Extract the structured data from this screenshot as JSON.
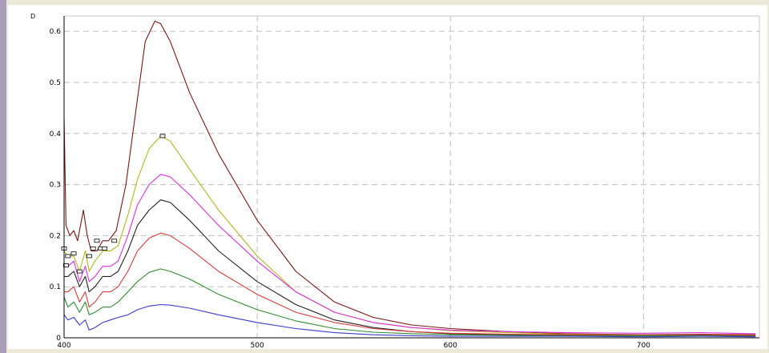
{
  "chart_data": {
    "type": "line",
    "ylabel": "D",
    "xlabel": "",
    "xlim": [
      400,
      760
    ],
    "ylim": [
      0,
      0.63
    ],
    "grid": true,
    "x_ticks": [
      400,
      500,
      600,
      700
    ],
    "x_tick_labels": [
      "400",
      "500",
      "600",
      "700"
    ],
    "y_ticks": [
      0,
      0.1,
      0.2,
      0.3,
      0.4,
      0.5,
      0.6
    ],
    "y_tick_labels": [
      "0",
      "0.1",
      "0.2",
      "0.3",
      "0.4",
      "0.5",
      "0.6"
    ],
    "series": [
      {
        "color": "#7a1616",
        "points": [
          [
            400,
            0.43
          ],
          [
            401,
            0.22
          ],
          [
            403,
            0.2
          ],
          [
            405,
            0.21
          ],
          [
            407,
            0.19
          ],
          [
            410,
            0.25
          ],
          [
            412,
            0.2
          ],
          [
            414,
            0.17
          ],
          [
            417,
            0.17
          ],
          [
            420,
            0.19
          ],
          [
            423,
            0.19
          ],
          [
            427,
            0.21
          ],
          [
            432,
            0.3
          ],
          [
            437,
            0.44
          ],
          [
            442,
            0.58
          ],
          [
            447,
            0.62
          ],
          [
            450,
            0.615
          ],
          [
            455,
            0.58
          ],
          [
            465,
            0.48
          ],
          [
            480,
            0.36
          ],
          [
            500,
            0.23
          ],
          [
            520,
            0.13
          ],
          [
            540,
            0.07
          ],
          [
            560,
            0.04
          ],
          [
            580,
            0.025
          ],
          [
            600,
            0.018
          ],
          [
            630,
            0.012
          ],
          [
            660,
            0.008
          ],
          [
            700,
            0.006
          ],
          [
            730,
            0.007
          ],
          [
            758,
            0.006
          ]
        ]
      },
      {
        "color": "#b5b51e",
        "points": [
          [
            400,
            0.17
          ],
          [
            402,
            0.16
          ],
          [
            405,
            0.16
          ],
          [
            408,
            0.13
          ],
          [
            411,
            0.17
          ],
          [
            413,
            0.13
          ],
          [
            416,
            0.15
          ],
          [
            420,
            0.17
          ],
          [
            424,
            0.17
          ],
          [
            428,
            0.18
          ],
          [
            433,
            0.24
          ],
          [
            438,
            0.31
          ],
          [
            444,
            0.37
          ],
          [
            450,
            0.395
          ],
          [
            455,
            0.385
          ],
          [
            465,
            0.33
          ],
          [
            480,
            0.25
          ],
          [
            500,
            0.16
          ],
          [
            520,
            0.09
          ],
          [
            540,
            0.05
          ],
          [
            560,
            0.03
          ],
          [
            580,
            0.02
          ],
          [
            600,
            0.014
          ],
          [
            630,
            0.01
          ],
          [
            660,
            0.007
          ],
          [
            700,
            0.005
          ],
          [
            730,
            0.006
          ],
          [
            758,
            0.005
          ]
        ]
      },
      {
        "color": "#d930d9",
        "points": [
          [
            400,
            0.14
          ],
          [
            402,
            0.14
          ],
          [
            405,
            0.15
          ],
          [
            408,
            0.11
          ],
          [
            411,
            0.14
          ],
          [
            413,
            0.11
          ],
          [
            416,
            0.12
          ],
          [
            420,
            0.14
          ],
          [
            424,
            0.14
          ],
          [
            428,
            0.15
          ],
          [
            433,
            0.2
          ],
          [
            438,
            0.26
          ],
          [
            444,
            0.3
          ],
          [
            450,
            0.32
          ],
          [
            455,
            0.315
          ],
          [
            465,
            0.28
          ],
          [
            480,
            0.22
          ],
          [
            500,
            0.15
          ],
          [
            520,
            0.09
          ],
          [
            540,
            0.05
          ],
          [
            560,
            0.03
          ],
          [
            580,
            0.02
          ],
          [
            600,
            0.015
          ],
          [
            630,
            0.012
          ],
          [
            660,
            0.01
          ],
          [
            700,
            0.009
          ],
          [
            730,
            0.01
          ],
          [
            758,
            0.008
          ]
        ]
      },
      {
        "color": "#222222",
        "points": [
          [
            400,
            0.12
          ],
          [
            402,
            0.12
          ],
          [
            405,
            0.13
          ],
          [
            408,
            0.1
          ],
          [
            411,
            0.12
          ],
          [
            413,
            0.09
          ],
          [
            416,
            0.1
          ],
          [
            420,
            0.12
          ],
          [
            424,
            0.12
          ],
          [
            428,
            0.13
          ],
          [
            433,
            0.17
          ],
          [
            438,
            0.22
          ],
          [
            444,
            0.25
          ],
          [
            450,
            0.27
          ],
          [
            455,
            0.265
          ],
          [
            465,
            0.23
          ],
          [
            480,
            0.17
          ],
          [
            500,
            0.11
          ],
          [
            520,
            0.065
          ],
          [
            540,
            0.035
          ],
          [
            560,
            0.02
          ],
          [
            580,
            0.012
          ],
          [
            600,
            0.008
          ],
          [
            630,
            0.006
          ],
          [
            660,
            0.005
          ],
          [
            700,
            0.004
          ],
          [
            730,
            0.005
          ],
          [
            758,
            0.004
          ]
        ]
      },
      {
        "color": "#d83a3a",
        "points": [
          [
            400,
            0.09
          ],
          [
            402,
            0.09
          ],
          [
            405,
            0.1
          ],
          [
            408,
            0.07
          ],
          [
            411,
            0.09
          ],
          [
            413,
            0.06
          ],
          [
            416,
            0.07
          ],
          [
            420,
            0.09
          ],
          [
            424,
            0.09
          ],
          [
            428,
            0.1
          ],
          [
            433,
            0.13
          ],
          [
            438,
            0.17
          ],
          [
            444,
            0.195
          ],
          [
            450,
            0.205
          ],
          [
            455,
            0.2
          ],
          [
            465,
            0.175
          ],
          [
            480,
            0.13
          ],
          [
            500,
            0.085
          ],
          [
            520,
            0.05
          ],
          [
            540,
            0.03
          ],
          [
            560,
            0.018
          ],
          [
            580,
            0.012
          ],
          [
            600,
            0.009
          ],
          [
            630,
            0.007
          ],
          [
            660,
            0.006
          ],
          [
            700,
            0.005
          ],
          [
            730,
            0.006
          ],
          [
            758,
            0.005
          ]
        ]
      },
      {
        "color": "#2e8b2e",
        "points": [
          [
            400,
            0.08
          ],
          [
            402,
            0.06
          ],
          [
            405,
            0.07
          ],
          [
            408,
            0.05
          ],
          [
            411,
            0.07
          ],
          [
            413,
            0.045
          ],
          [
            416,
            0.05
          ],
          [
            420,
            0.06
          ],
          [
            424,
            0.06
          ],
          [
            428,
            0.07
          ],
          [
            433,
            0.09
          ],
          [
            438,
            0.11
          ],
          [
            444,
            0.128
          ],
          [
            450,
            0.135
          ],
          [
            455,
            0.13
          ],
          [
            465,
            0.115
          ],
          [
            480,
            0.085
          ],
          [
            500,
            0.055
          ],
          [
            520,
            0.033
          ],
          [
            540,
            0.018
          ],
          [
            560,
            0.011
          ],
          [
            580,
            0.008
          ],
          [
            600,
            0.006
          ],
          [
            630,
            0.005
          ],
          [
            660,
            0.004
          ],
          [
            700,
            0.004
          ],
          [
            730,
            0.004
          ],
          [
            758,
            0.003
          ]
        ]
      },
      {
        "color": "#3a3aca",
        "points": [
          [
            400,
            0.045
          ],
          [
            402,
            0.035
          ],
          [
            405,
            0.04
          ],
          [
            408,
            0.025
          ],
          [
            411,
            0.035
          ],
          [
            413,
            0.015
          ],
          [
            416,
            0.02
          ],
          [
            420,
            0.03
          ],
          [
            424,
            0.035
          ],
          [
            428,
            0.04
          ],
          [
            433,
            0.045
          ],
          [
            438,
            0.055
          ],
          [
            444,
            0.062
          ],
          [
            450,
            0.065
          ],
          [
            455,
            0.064
          ],
          [
            465,
            0.058
          ],
          [
            480,
            0.045
          ],
          [
            500,
            0.03
          ],
          [
            520,
            0.018
          ],
          [
            540,
            0.01
          ],
          [
            560,
            0.006
          ],
          [
            580,
            0.004
          ],
          [
            600,
            0.003
          ],
          [
            630,
            0.003
          ],
          [
            660,
            0.003
          ],
          [
            700,
            0.002
          ],
          [
            730,
            0.003
          ],
          [
            758,
            0.002
          ]
        ]
      }
    ],
    "markers": [
      [
        451,
        0.395
      ],
      [
        400,
        0.175
      ],
      [
        405,
        0.165
      ],
      [
        402,
        0.16
      ],
      [
        408,
        0.13
      ],
      [
        413,
        0.16
      ],
      [
        415,
        0.175
      ],
      [
        417,
        0.19
      ],
      [
        419,
        0.175
      ],
      [
        421,
        0.175
      ],
      [
        426,
        0.19
      ],
      [
        401,
        0.142
      ]
    ]
  }
}
